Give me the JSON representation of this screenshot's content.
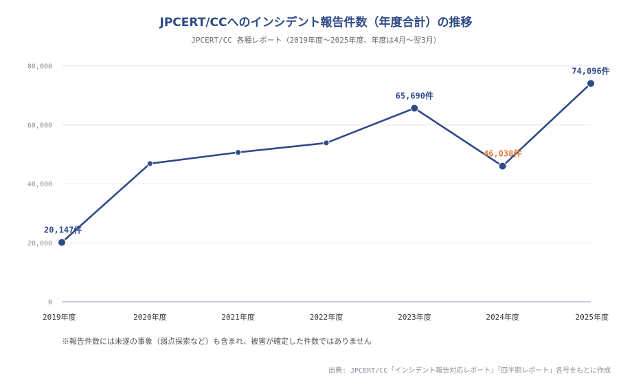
{
  "chart_data": {
    "type": "line",
    "title": "JPCERT/CCへのインシデント報告件数（年度合計）の推移",
    "subtitle": "JPCERT/CC 各種レポート（2019年度〜2025年度、年度は4月〜翌3月）",
    "xlabel": "",
    "ylabel": "",
    "categories": [
      "2019年度",
      "2020年度",
      "2021年度",
      "2022年度",
      "2023年度",
      "2024年度",
      "2025年度"
    ],
    "series": [
      {
        "values": [
          20147,
          46900,
          50700,
          53900,
          65690,
          46038,
          74096
        ]
      }
    ],
    "ylim": [
      0,
      80000
    ],
    "yticks": [
      0,
      20000,
      40000,
      60000,
      80000
    ],
    "ytick_labels": [
      "0",
      "20,000",
      "40,000",
      "60,000",
      "80,000"
    ],
    "data_labels": [
      {
        "index": 0,
        "text": "20,147件"
      },
      {
        "index": 4,
        "text": "65,690件"
      },
      {
        "index": 5,
        "text": "46,038件",
        "highlight": true
      },
      {
        "index": 6,
        "text": "74,096件"
      }
    ],
    "grid": true,
    "legend": "none"
  },
  "footnote": "※報告件数には未遂の事象（弱点探索など）も含まれ、被害が確定した件数ではありません",
  "source": "出典: JPCERT/CC「インシデント報告対応レポート」「四半期レポート」各号をもとに作成",
  "colors": {
    "line": "#2e4a87",
    "title": "#2e4a87",
    "highlight": "#e07b39",
    "grid": "#e4e6ec",
    "axis": "#b9bfd9",
    "tick": "#8a8f99",
    "xtick": "#333333",
    "note": "#555555",
    "source": "#8a8f99",
    "subtitle": "#666666"
  }
}
